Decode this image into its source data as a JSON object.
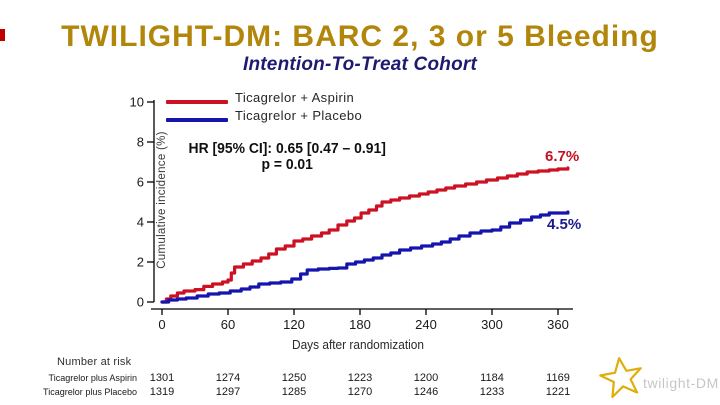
{
  "slide": {
    "title": "TWILIGHT-DM: BARC 2, 3 or 5 Bleeding",
    "subtitle": "Intention-To-Treat Cohort",
    "title_color": "#B1860B",
    "subtitle_color": "#1F1A71",
    "edge_mark_color": "#C00000"
  },
  "legend": [
    {
      "label": "Ticagrelor + Aspirin",
      "color": "#CC1122"
    },
    {
      "label": "Ticagrelor + Placebo",
      "color": "#1515AE"
    }
  ],
  "annotation": {
    "line1": "HR [95% CI]: 0.65 [0.47 – 0.91]",
    "line2": "p = 0.01"
  },
  "end_labels": [
    {
      "text": "6.7%",
      "color": "#C11122"
    },
    {
      "text": "4.5%",
      "color": "#1A1A8C"
    }
  ],
  "chart_data": {
    "type": "line",
    "subtype": "step-cumulative-incidence",
    "title": "TWILIGHT-DM: BARC 2, 3 or 5 Bleeding — Intention-To-Treat Cohort",
    "xlabel": "Days after randomization",
    "ylabel": "Cumulative incidence (%)",
    "xlim": [
      0,
      360
    ],
    "ylim": [
      0,
      10
    ],
    "xticks": [
      0,
      60,
      120,
      180,
      240,
      300,
      360
    ],
    "yticks": [
      0,
      2,
      4,
      6,
      8,
      10
    ],
    "grid": false,
    "legend_position": "top-left",
    "annotation": "HR [95% CI]: 0.65 [0.47 – 0.91], p = 0.01",
    "series": [
      {
        "name": "Ticagrelor + Aspirin",
        "color": "#CC1122",
        "final_value_label": "6.7%",
        "points": [
          [
            0,
            0
          ],
          [
            4,
            0.15
          ],
          [
            8,
            0.3
          ],
          [
            14,
            0.45
          ],
          [
            20,
            0.55
          ],
          [
            30,
            0.62
          ],
          [
            38,
            0.78
          ],
          [
            46,
            0.9
          ],
          [
            55,
            1.0
          ],
          [
            60,
            1.1
          ],
          [
            63,
            1.45
          ],
          [
            66,
            1.75
          ],
          [
            74,
            1.9
          ],
          [
            82,
            2.05
          ],
          [
            90,
            2.2
          ],
          [
            97,
            2.4
          ],
          [
            104,
            2.65
          ],
          [
            112,
            2.8
          ],
          [
            120,
            3.05
          ],
          [
            128,
            3.15
          ],
          [
            136,
            3.3
          ],
          [
            145,
            3.45
          ],
          [
            152,
            3.6
          ],
          [
            160,
            3.85
          ],
          [
            168,
            4.05
          ],
          [
            175,
            4.2
          ],
          [
            181,
            4.45
          ],
          [
            188,
            4.6
          ],
          [
            195,
            4.8
          ],
          [
            200,
            5.0
          ],
          [
            208,
            5.1
          ],
          [
            216,
            5.2
          ],
          [
            225,
            5.3
          ],
          [
            234,
            5.4
          ],
          [
            242,
            5.5
          ],
          [
            250,
            5.6
          ],
          [
            258,
            5.7
          ],
          [
            266,
            5.8
          ],
          [
            276,
            5.9
          ],
          [
            286,
            6.0
          ],
          [
            295,
            6.1
          ],
          [
            305,
            6.2
          ],
          [
            314,
            6.3
          ],
          [
            323,
            6.4
          ],
          [
            332,
            6.5
          ],
          [
            342,
            6.55
          ],
          [
            352,
            6.6
          ],
          [
            360,
            6.65
          ],
          [
            369,
            6.7
          ]
        ]
      },
      {
        "name": "Ticagrelor + Placebo",
        "color": "#1515AE",
        "final_value_label": "4.5%",
        "points": [
          [
            0,
            0
          ],
          [
            6,
            0.1
          ],
          [
            14,
            0.15
          ],
          [
            22,
            0.2
          ],
          [
            32,
            0.3
          ],
          [
            42,
            0.4
          ],
          [
            52,
            0.45
          ],
          [
            62,
            0.55
          ],
          [
            72,
            0.65
          ],
          [
            80,
            0.75
          ],
          [
            88,
            0.9
          ],
          [
            98,
            0.95
          ],
          [
            108,
            1.0
          ],
          [
            118,
            1.15
          ],
          [
            126,
            1.4
          ],
          [
            132,
            1.6
          ],
          [
            142,
            1.65
          ],
          [
            152,
            1.68
          ],
          [
            160,
            1.7
          ],
          [
            168,
            1.9
          ],
          [
            176,
            2.0
          ],
          [
            184,
            2.1
          ],
          [
            192,
            2.2
          ],
          [
            200,
            2.35
          ],
          [
            208,
            2.45
          ],
          [
            216,
            2.6
          ],
          [
            226,
            2.7
          ],
          [
            236,
            2.8
          ],
          [
            246,
            2.9
          ],
          [
            254,
            3.0
          ],
          [
            262,
            3.15
          ],
          [
            270,
            3.3
          ],
          [
            280,
            3.45
          ],
          [
            290,
            3.55
          ],
          [
            300,
            3.6
          ],
          [
            308,
            3.75
          ],
          [
            316,
            3.95
          ],
          [
            326,
            4.1
          ],
          [
            336,
            4.25
          ],
          [
            344,
            4.35
          ],
          [
            352,
            4.45
          ],
          [
            369,
            4.5
          ]
        ]
      }
    ]
  },
  "number_at_risk": {
    "header": "Number at risk",
    "timepoints": [
      0,
      60,
      120,
      180,
      240,
      300,
      360
    ],
    "rows": [
      {
        "label": "Ticagrelor plus Aspirin",
        "values": [
          "1301",
          "1274",
          "1250",
          "1223",
          "1200",
          "1184",
          "1169"
        ]
      },
      {
        "label": "Ticagrelor plus Placebo",
        "values": [
          "1319",
          "1297",
          "1285",
          "1270",
          "1246",
          "1233",
          "1221"
        ]
      }
    ]
  },
  "logo": {
    "text": "twilight-DM",
    "star_color": "#DFAE0C",
    "text_color": "#C6C6C6"
  }
}
